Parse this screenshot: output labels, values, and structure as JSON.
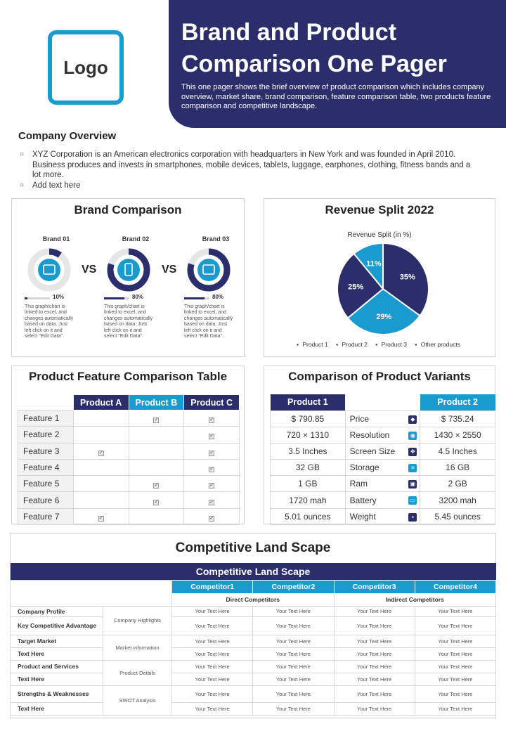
{
  "header": {
    "logo": "Logo",
    "title": "Brand and Product Comparison One Pager",
    "description": "This one pager shows the brief overview of product comparison which includes company overview, market share, brand comparison, feature comparison table, two products feature comparison and competitive landscape."
  },
  "overview": {
    "title": "Company Overview",
    "items": [
      "XYZ Corporation is an American electronics corporation with headquarters in New York and was founded in April 2010. Business produces and invests in smartphones, mobile devices, tablets, luggage, earphones, clothing, fitness bands and a lot more.",
      "Add text here"
    ]
  },
  "brand_comparison": {
    "title": "Brand Comparison",
    "vs": "VS",
    "brands": [
      {
        "name": "Brand 01",
        "percent_label": "10%",
        "fraction": 0.1,
        "icon": "store-icon",
        "desc": "This graph/chart is linked to excel, and changes automatically based on data. Just left click on it and select \"Edit Data\"."
      },
      {
        "name": "Brand 02",
        "percent_label": "80%",
        "fraction": 0.8,
        "icon": "mobile-icon",
        "desc": "This graph/chart is linked to excel, and changes automatically based on data. Just left click on it and select \"Edit Data\"."
      },
      {
        "name": "Brand 03",
        "percent_label": "80%",
        "fraction": 0.8,
        "icon": "monitor-icon",
        "desc": "This graph/chart is linked to excel, and changes automatically based on data. Just left click on it and select \"Edit Data\"."
      }
    ],
    "colors": {
      "fill": "#2b2e6b",
      "track": "#e6e6e6",
      "icon_bg": "#1a9bd0"
    }
  },
  "revenue_split": {
    "title": "Revenue Split 2022",
    "chart_data": {
      "type": "pie",
      "title": "Revenue Split (in %)",
      "categories": [
        "Product 1",
        "Product 2",
        "Product 3",
        "Other products"
      ],
      "values": [
        35,
        29,
        25,
        11
      ],
      "labels": [
        "35%",
        "29%",
        "25%",
        "11%"
      ],
      "colors": [
        "#2b2e6b",
        "#1a9bd0",
        "#2b2e6b",
        "#1a9bd0"
      ],
      "legend": "bottom"
    }
  },
  "feature_table": {
    "title": "Product Feature Comparison Table",
    "columns": [
      "Product A",
      "Product B",
      "Product C"
    ],
    "column_colors": [
      "#2b2e6b",
      "#1a9bd0",
      "#2b2e6b"
    ],
    "check_glyph": "✓",
    "rows": [
      {
        "label": "Feature 1",
        "checks": [
          false,
          true,
          true
        ]
      },
      {
        "label": "Feature 2",
        "checks": [
          false,
          false,
          true
        ]
      },
      {
        "label": "Feature 3",
        "checks": [
          true,
          false,
          true
        ]
      },
      {
        "label": "Feature 4",
        "checks": [
          false,
          false,
          true
        ]
      },
      {
        "label": "Feature 5",
        "checks": [
          false,
          true,
          true
        ]
      },
      {
        "label": "Feature 6",
        "checks": [
          false,
          true,
          true
        ]
      },
      {
        "label": "Feature 7",
        "checks": [
          true,
          false,
          true
        ]
      }
    ]
  },
  "variants": {
    "title": "Comparison of Product Variants",
    "product1": "Product 1",
    "product2": "Product 2",
    "rows": [
      {
        "p1": "$ 790.85",
        "attr": "Price",
        "p2": "$ 735.24",
        "icon": "price-tag-icon"
      },
      {
        "p1": "720 × 1310",
        "attr": "Resolution",
        "p2": "1430 × 2550",
        "icon": "camera-icon"
      },
      {
        "p1": "3.5 Inches",
        "attr": "Screen Size",
        "p2": "4.5 Inches",
        "icon": "expand-icon"
      },
      {
        "p1": "32 GB",
        "attr": "Storage",
        "p2": "16 GB",
        "icon": "storage-icon"
      },
      {
        "p1": "1 GB",
        "attr": "Ram",
        "p2": "2 GB",
        "icon": "chip-icon"
      },
      {
        "p1": "1720 mah",
        "attr": "Battery",
        "p2": "3200 mah",
        "icon": "battery-icon"
      },
      {
        "p1": "5.01 ounces",
        "attr": "Weight",
        "p2": "5.45 ounces",
        "icon": "weight-icon"
      }
    ]
  },
  "landscape": {
    "title": "Competitive Land Scape",
    "banner": "Competitive Land Scape",
    "competitors": [
      "Competitor1",
      "Competitor2",
      "Competitor3",
      "Competitor4"
    ],
    "direct": "Direct Competitors",
    "indirect": "Indirect Competitors",
    "cell_text": "Your Text Here",
    "groups": [
      {
        "name": "Company Highlights",
        "rows": [
          "Company Profile",
          "Key Competitive Advantage"
        ]
      },
      {
        "name": "Market information",
        "rows": [
          "Target Market",
          "Text Here"
        ]
      },
      {
        "name": "Product Details",
        "rows": [
          "Product and Services",
          "Text Here"
        ]
      },
      {
        "name": "SWOT Analysis",
        "rows": [
          "Strengths & Weaknesses",
          "Text Here"
        ]
      }
    ]
  }
}
